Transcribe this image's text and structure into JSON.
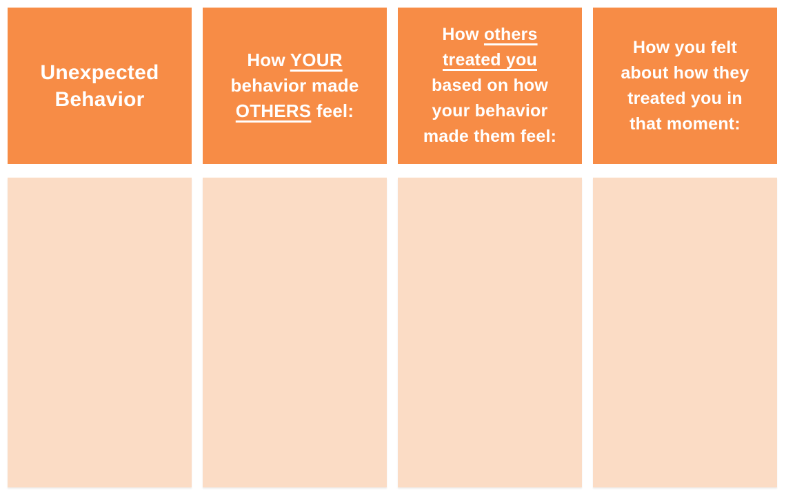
{
  "colors": {
    "page_bg": "#FFFFFF",
    "header_bg": "#F78C46",
    "header_text": "#FFFFFF",
    "cell_bg": "#FBDCC5"
  },
  "worksheet": {
    "columns": [
      {
        "header_text": "Unexpected Behavior",
        "header_lines": [
          [
            {
              "t": "Unexpected"
            }
          ],
          [
            {
              "t": "Behavior"
            }
          ]
        ],
        "cell_value": ""
      },
      {
        "header_text": "How YOUR behavior made OTHERS feel:",
        "header_lines": [
          [
            {
              "t": "How "
            },
            {
              "t": "YOUR",
              "u": true
            }
          ],
          [
            {
              "t": "behavior made"
            }
          ],
          [
            {
              "t": "OTHERS",
              "u": true
            },
            {
              "t": " feel:"
            }
          ]
        ],
        "cell_value": ""
      },
      {
        "header_text": "How others treated you based on how your behavior made them feel:",
        "header_lines": [
          [
            {
              "t": "How "
            },
            {
              "t": "others",
              "u": true
            }
          ],
          [
            {
              "t": "treated you",
              "u": true
            }
          ],
          [
            {
              "t": "based on how"
            }
          ],
          [
            {
              "t": "your behavior"
            }
          ],
          [
            {
              "t": "made them feel:"
            }
          ]
        ],
        "cell_value": ""
      },
      {
        "header_text": "How you felt about how they treated you in that moment:",
        "header_lines": [
          [
            {
              "t": "How you felt"
            }
          ],
          [
            {
              "t": "about how they"
            }
          ],
          [
            {
              "t": "treated you in"
            }
          ],
          [
            {
              "t": "that moment:"
            }
          ]
        ],
        "cell_value": ""
      }
    ]
  }
}
